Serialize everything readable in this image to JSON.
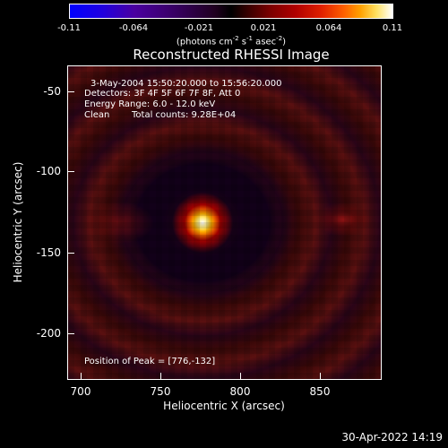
{
  "colorbar": {
    "ticks": [
      "-0.11",
      "-0.064",
      "-0.021",
      "0.021",
      "0.064",
      "0.11"
    ],
    "units_prefix": "(photons cm",
    "units_exp1": "-2",
    "units_mid1": " s",
    "units_exp2": "-1",
    "units_mid2": " asec",
    "units_exp3": "-2",
    "units_suffix": ")"
  },
  "title": "Reconstructed RHESSI Image",
  "info": {
    "time_range": "3-May-2004 15:50:20.000 to 15:56:20.000",
    "detectors": "Detectors: 3F 4F 5F 6F 7F 8F, Att 0",
    "energy": "Energy Range: 6.0 - 12.0 keV",
    "method": "Clean",
    "counts": "Total counts: 9.28E+04",
    "peak": "Position of Peak = [776,-132]"
  },
  "axes": {
    "x_label": "Heliocentric X (arcsec)",
    "y_label": "Heliocentric Y (arcsec)",
    "x_ticks": [
      "700",
      "750",
      "800",
      "850"
    ],
    "y_ticks": [
      "-50",
      "-100",
      "-150",
      "-200"
    ]
  },
  "footer": {
    "timestamp": "30-Apr-2022 14:19"
  }
}
